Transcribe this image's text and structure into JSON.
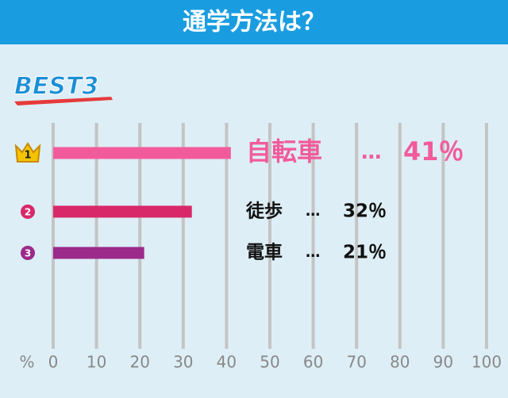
{
  "chart_data": {
    "type": "bar",
    "orientation": "horizontal",
    "title": "通学方法は？",
    "badge": "BEST3",
    "categories": [
      "自転車",
      "徒歩",
      "電車"
    ],
    "ranks": [
      "1",
      "2",
      "3"
    ],
    "separator": "…",
    "values": [
      41,
      32,
      21
    ],
    "value_labels": [
      "41％",
      "32％",
      "21％"
    ],
    "colors": [
      "#f25b9b",
      "#d8286a",
      "#9c2a8a"
    ],
    "xlabel": "%",
    "xlim": [
      0,
      100
    ],
    "xticks": [
      0,
      10,
      20,
      30,
      40,
      50,
      60,
      70,
      80,
      90,
      100
    ],
    "grid": true
  }
}
